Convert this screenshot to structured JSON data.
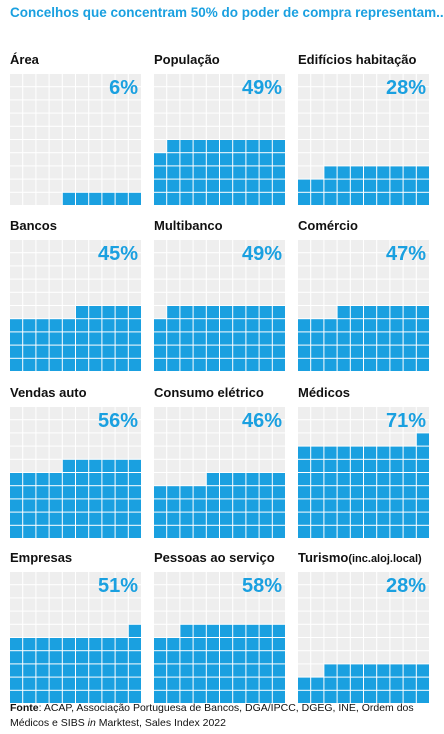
{
  "title": "Concelhos que concentram 50% do poder de compra representam...",
  "colors": {
    "accent": "#1aa0e0",
    "cell_empty": "#eeeeee",
    "cell_filled": "#1aa0e0"
  },
  "chart_data": {
    "type": "waffle",
    "grid_rows": 10,
    "grid_cols": 10,
    "fill_order": "bottom-up, right-to-left",
    "panels": [
      {
        "label": "Área",
        "value": 6,
        "value_label": "6%"
      },
      {
        "label": "População",
        "value": 49,
        "value_label": "49%"
      },
      {
        "label": "Edifícios habitação",
        "value": 28,
        "value_label": "28%"
      },
      {
        "label": "Bancos",
        "value": 45,
        "value_label": "45%"
      },
      {
        "label": "Multibanco",
        "value": 49,
        "value_label": "49%"
      },
      {
        "label": "Comércio",
        "value": 47,
        "value_label": "47%"
      },
      {
        "label": "Vendas auto",
        "value": 56,
        "value_label": "56%"
      },
      {
        "label": "Consumo elétrico",
        "value": 46,
        "value_label": "46%"
      },
      {
        "label": "Médicos",
        "value": 71,
        "value_label": "71%"
      },
      {
        "label": "Empresas",
        "value": 51,
        "value_label": "51%"
      },
      {
        "label": "Pessoas ao serviço",
        "value": 58,
        "value_label": "58%"
      },
      {
        "label": "Turismo",
        "label_suffix": "(inc.aloj.local)",
        "value": 28,
        "value_label": "28%"
      }
    ]
  },
  "source": {
    "label": "Fonte",
    "text_before_italic": ": ACAP, Associação Portuguesa de Bancos, DGA/IPCC,  DGEG, INE, Ordem dos Médicos e SIBS ",
    "italic": "in",
    "text_after_italic": " Marktest, Sales Index 2022"
  }
}
